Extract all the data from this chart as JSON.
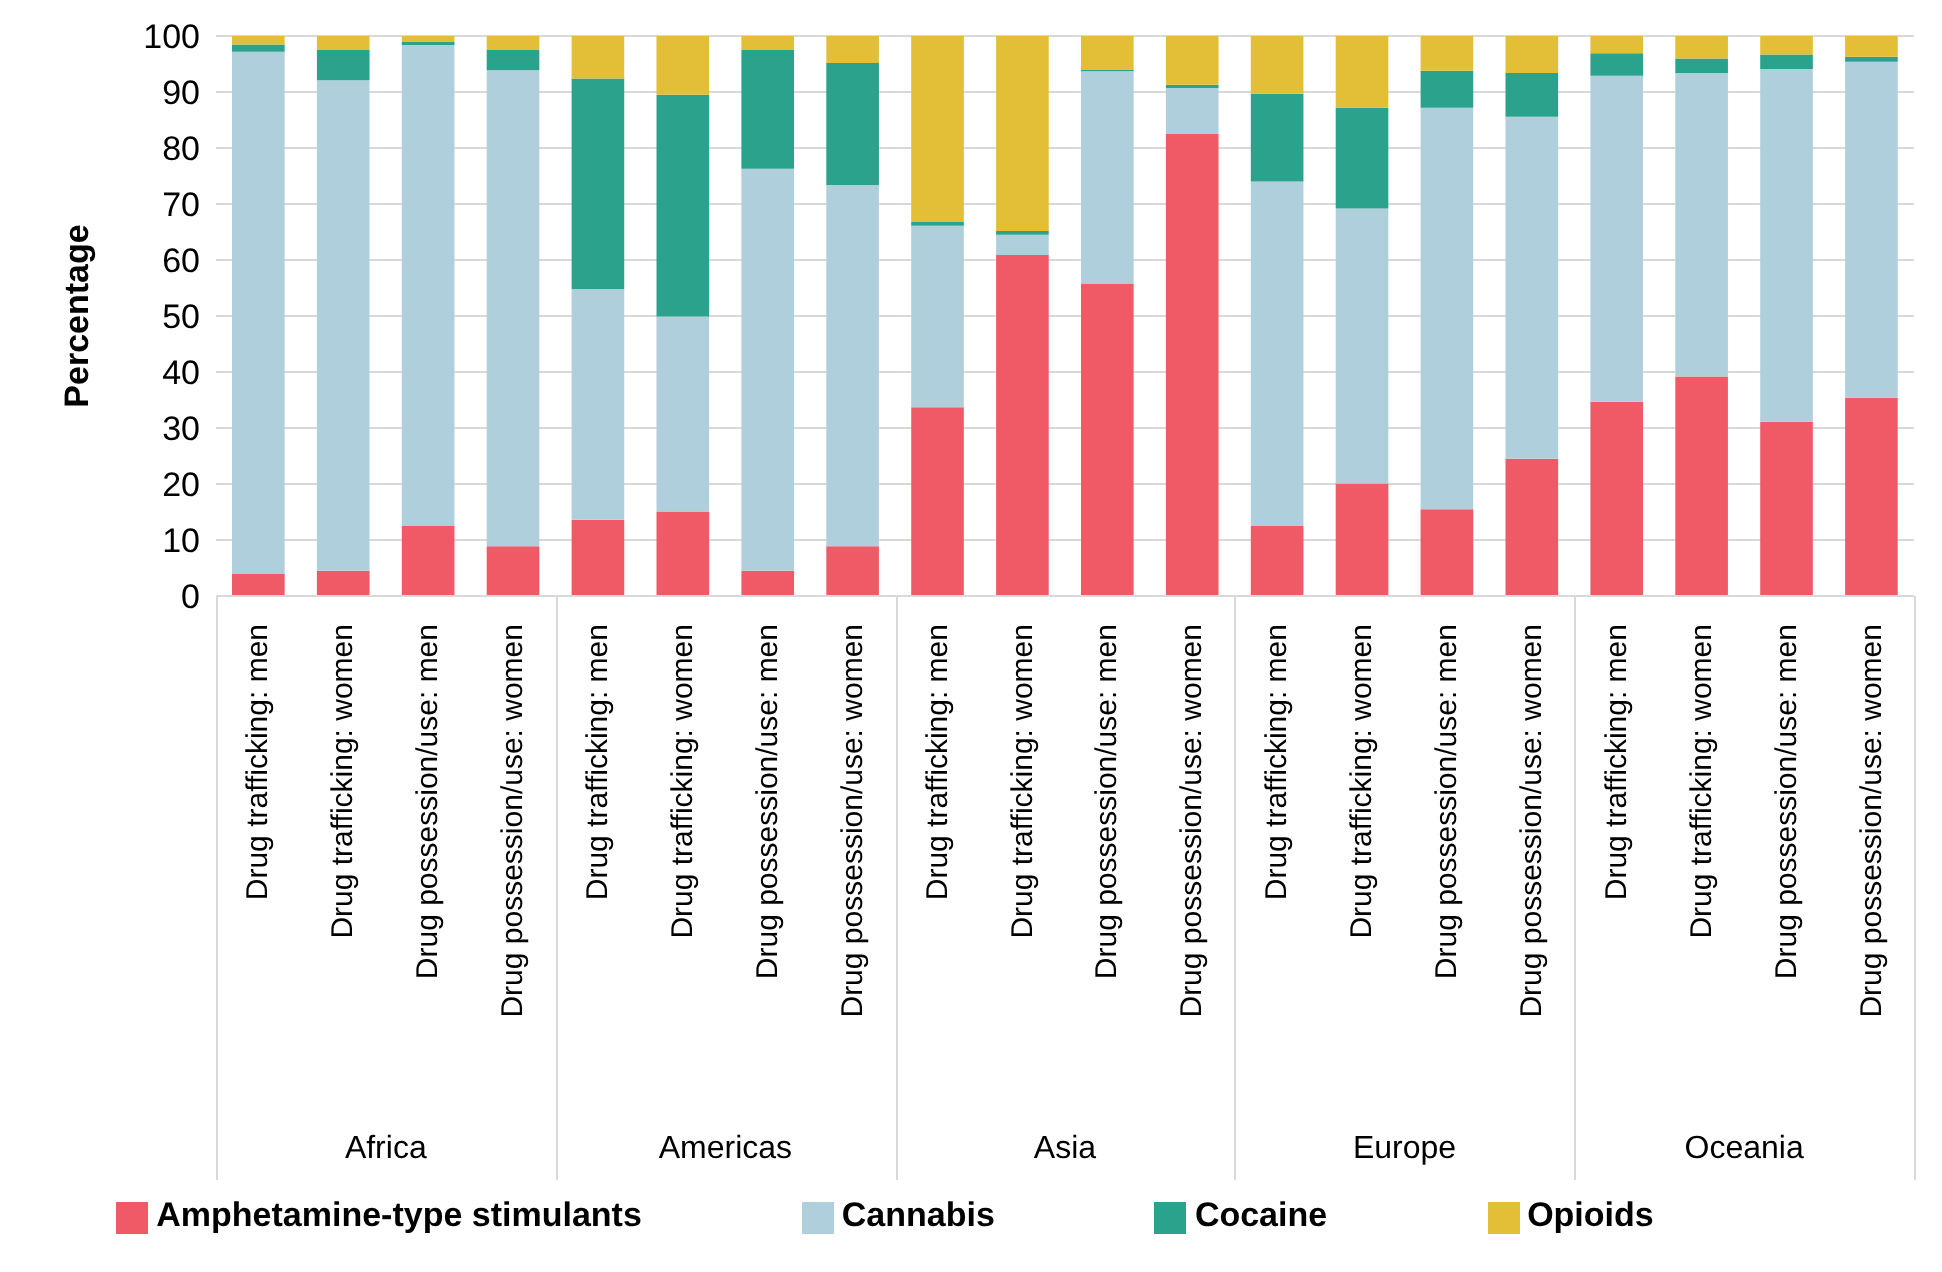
{
  "chart_data": {
    "type": "bar",
    "stacked": true,
    "ylabel": "Percentage",
    "ylim": [
      0,
      100
    ],
    "yticks": [
      0,
      10,
      20,
      30,
      40,
      50,
      60,
      70,
      80,
      90,
      100
    ],
    "grid": "y",
    "legend": "bottom",
    "categories": [
      "Drug trafficking: men",
      "Drug trafficking: women",
      "Drug possession/use: men",
      "Drug possession/use: women",
      "Drug trafficking: men",
      "Drug trafficking: women",
      "Drug possession/use: men",
      "Drug possession/use: women",
      "Drug trafficking: men",
      "Drug trafficking: women",
      "Drug possession/use: men",
      "Drug possession/use: women",
      "Drug trafficking: men",
      "Drug trafficking: women",
      "Drug possession/use: men",
      "Drug possession/use: women",
      "Drug trafficking: men",
      "Drug trafficking: women",
      "Drug possession/use: men",
      "Drug possession/use: women"
    ],
    "annotations": [
      "Africa",
      "Americas",
      "Asia",
      "Europe",
      "Oceania"
    ],
    "series": [
      {
        "name": "Amphetamine-type stimulants",
        "color": "#f05a67",
        "values": [
          4,
          4.5,
          12.6,
          8.9,
          13.6,
          15.1,
          4.5,
          8.9,
          33.7,
          60.9,
          55.8,
          82.5,
          12.5,
          20.1,
          15.5,
          24.5,
          34.7,
          39.2,
          31.1,
          35.4
        ]
      },
      {
        "name": "Cannabis",
        "color": "#b0cfdc",
        "values": [
          93.2,
          87.6,
          85.8,
          85,
          41.2,
          34.8,
          71.8,
          64.5,
          32.4,
          3.6,
          37.9,
          8.2,
          61.5,
          49.1,
          71.7,
          61.1,
          58.2,
          54.2,
          63,
          60
        ]
      },
      {
        "name": "Cocaine",
        "color": "#2aa28c",
        "values": [
          1.3,
          5.5,
          0.6,
          3.7,
          37.6,
          39.6,
          21.3,
          21.8,
          0.7,
          0.7,
          0.3,
          0.6,
          15.7,
          18,
          6.6,
          7.8,
          4,
          2.6,
          2.6,
          0.9
        ]
      },
      {
        "name": "Opioids",
        "color": "#e2bf37",
        "values": [
          1.5,
          2.4,
          1,
          2.4,
          7.6,
          10.5,
          2.4,
          4.8,
          33.2,
          34.8,
          6,
          8.7,
          10.3,
          12.8,
          6.2,
          6.6,
          3.1,
          4,
          3.3,
          3.7
        ]
      }
    ]
  }
}
